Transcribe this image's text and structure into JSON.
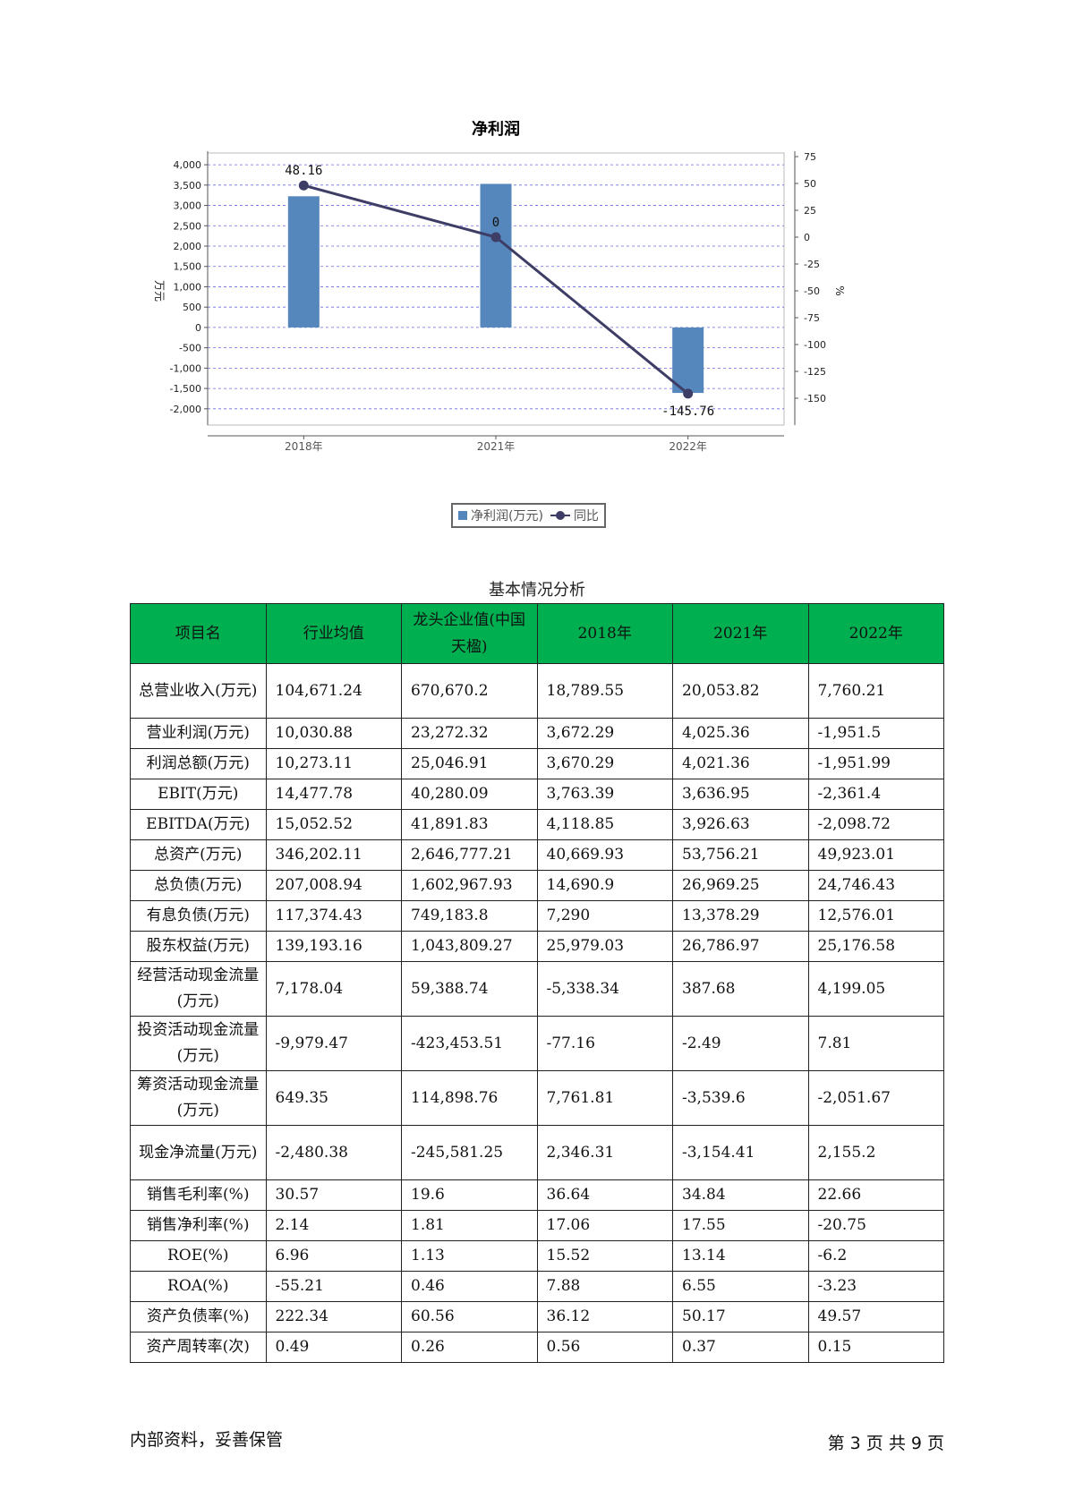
{
  "chart_data": {
    "type": "bar+line",
    "title": "净利润",
    "categories": [
      "2018年",
      "2021年",
      "2022年"
    ],
    "series": [
      {
        "name": "净利润(万元)",
        "type": "bar",
        "axis": "left",
        "values": [
          3225,
          3530,
          -1610
        ]
      },
      {
        "name": "同比",
        "type": "line",
        "axis": "right",
        "values": [
          48.16,
          0,
          -145.76
        ],
        "labels": [
          "48.16",
          "0",
          "-145.76"
        ]
      }
    ],
    "ylabel_left": "万元",
    "ylabel_right": "%",
    "y_left_ticks": [
      "4,000",
      "3,500",
      "3,000",
      "2,500",
      "2,000",
      "1,500",
      "1,000",
      "500",
      "0",
      "-500",
      "-1,000",
      "-1,500",
      "-2,000"
    ],
    "y_left_tick_values": [
      4000,
      3500,
      3000,
      2500,
      2000,
      1500,
      1000,
      500,
      0,
      -500,
      -1000,
      -1500,
      -2000
    ],
    "y_right_ticks": [
      "75",
      "50",
      "25",
      "0",
      "-25",
      "-50",
      "-75",
      "-100",
      "-125",
      "-150"
    ],
    "y_right_tick_values": [
      75,
      50,
      25,
      0,
      -25,
      -50,
      -75,
      -100,
      -125,
      -150
    ],
    "ylim_left": [
      -2400,
      4200
    ],
    "ylim_right": [
      -175,
      75
    ],
    "grid": true,
    "legend_position": "bottom-center",
    "colors": {
      "bar": "#5587bd",
      "line": "#3d3d66",
      "grid": "#6a6ae0"
    }
  },
  "legend": {
    "bar_label": "净利润(万元)",
    "line_label": "同比"
  },
  "table": {
    "caption": "基本情况分析",
    "header_color": "#00b050",
    "headers": [
      "项目名",
      "行业均值",
      "龙头企业值(中国天楹)",
      "2018年",
      "2021年",
      "2022年"
    ],
    "rows": [
      {
        "name": "总营业收入(万元)",
        "values": [
          "104,671.24",
          "670,670.2",
          "18,789.55",
          "20,053.82",
          "7,760.21"
        ],
        "tall": true
      },
      {
        "name": "营业利润(万元)",
        "values": [
          "10,030.88",
          "23,272.32",
          "3,672.29",
          "4,025.36",
          "-1,951.5"
        ]
      },
      {
        "name": "利润总额(万元)",
        "values": [
          "10,273.11",
          "25,046.91",
          "3,670.29",
          "4,021.36",
          "-1,951.99"
        ]
      },
      {
        "name": "EBIT(万元)",
        "values": [
          "14,477.78",
          "40,280.09",
          "3,763.39",
          "3,636.95",
          "-2,361.4"
        ]
      },
      {
        "name": "EBITDA(万元)",
        "values": [
          "15,052.52",
          "41,891.83",
          "4,118.85",
          "3,926.63",
          "-2,098.72"
        ]
      },
      {
        "name": "总资产(万元)",
        "values": [
          "346,202.11",
          "2,646,777.21",
          "40,669.93",
          "53,756.21",
          "49,923.01"
        ]
      },
      {
        "name": "总负债(万元)",
        "values": [
          "207,008.94",
          "1,602,967.93",
          "14,690.9",
          "26,969.25",
          "24,746.43"
        ]
      },
      {
        "name": "有息负债(万元)",
        "values": [
          "117,374.43",
          "749,183.8",
          "7,290",
          "13,378.29",
          "12,576.01"
        ]
      },
      {
        "name": "股东权益(万元)",
        "values": [
          "139,193.16",
          "1,043,809.27",
          "25,979.03",
          "26,786.97",
          "25,176.58"
        ]
      },
      {
        "name": "经营活动现金流量(万元)",
        "values": [
          "7,178.04",
          "59,388.74",
          "-5,338.34",
          "387.68",
          "4,199.05"
        ],
        "tall": true
      },
      {
        "name": "投资活动现金流量(万元)",
        "values": [
          "-9,979.47",
          "-423,453.51",
          "-77.16",
          "-2.49",
          "7.81"
        ],
        "tall": true
      },
      {
        "name": "筹资活动现金流量(万元)",
        "values": [
          "649.35",
          "114,898.76",
          "7,761.81",
          "-3,539.6",
          "-2,051.67"
        ],
        "tall": true
      },
      {
        "name": "现金净流量(万元)",
        "values": [
          "-2,480.38",
          "-245,581.25",
          "2,346.31",
          "-3,154.41",
          "2,155.2"
        ],
        "tall": true
      },
      {
        "name": "销售毛利率(%)",
        "values": [
          "30.57",
          "19.6",
          "36.64",
          "34.84",
          "22.66"
        ]
      },
      {
        "name": "销售净利率(%)",
        "values": [
          "2.14",
          "1.81",
          "17.06",
          "17.55",
          "-20.75"
        ]
      },
      {
        "name": "ROE(%)",
        "values": [
          "6.96",
          "1.13",
          "15.52",
          "13.14",
          "-6.2"
        ]
      },
      {
        "name": "ROA(%)",
        "values": [
          "-55.21",
          "0.46",
          "7.88",
          "6.55",
          "-3.23"
        ]
      },
      {
        "name": "资产负债率(%)",
        "values": [
          "222.34",
          "60.56",
          "36.12",
          "50.17",
          "49.57"
        ]
      },
      {
        "name": "资产周转率(次)",
        "values": [
          "0.49",
          "0.26",
          "0.56",
          "0.37",
          "0.15"
        ]
      }
    ]
  },
  "footer": {
    "left": "内部资料，妥善保管",
    "right": "第 3 页  共 9 页"
  }
}
